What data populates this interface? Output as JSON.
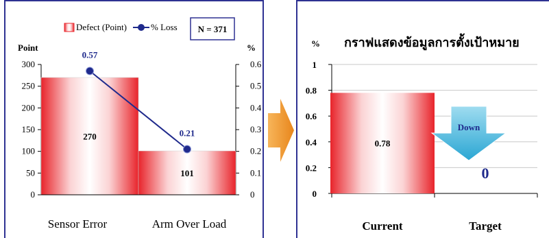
{
  "chart_data": [
    {
      "type": "bar",
      "categories": [
        "Sensor Error",
        "Arm Over Load"
      ],
      "series": [
        {
          "name": "Defect (Point)",
          "values": [
            270,
            101
          ],
          "kind": "bar",
          "axis": "left"
        },
        {
          "name": "% Loss",
          "values": [
            0.57,
            0.21
          ],
          "kind": "line",
          "axis": "right"
        }
      ],
      "ylabel": "Point",
      "y2label": "%",
      "ylim": [
        0,
        300
      ],
      "y2lim": [
        0,
        0.6
      ],
      "yticks": [
        "0",
        "50",
        "100",
        "150",
        "200",
        "250",
        "300"
      ],
      "y2ticks": [
        "0",
        "0.1",
        "0.2",
        "0.3",
        "0.4",
        "0.5",
        "0.6"
      ],
      "bar_labels": [
        "270",
        "101"
      ],
      "line_labels": [
        "0.57",
        "0.21"
      ],
      "annotation": "N = 371",
      "legend_position": "top",
      "colors": {
        "bar": "#e8242b",
        "line": "#1f2a8c"
      }
    },
    {
      "type": "bar",
      "title": "กราฟแสดงข้อมูลการตั้งเป้าหมาย",
      "categories": [
        "Current",
        "Target"
      ],
      "values": [
        0.78,
        0
      ],
      "ylabel": "%",
      "ylim": [
        0,
        1
      ],
      "yticks": [
        "0",
        "0.2",
        "0.4",
        "0.6",
        "0.8",
        "1"
      ],
      "bar_labels": [
        "0.78",
        "0"
      ],
      "callout": "Down",
      "grid": true,
      "colors": {
        "bar": "#e8242b",
        "arrow": "#35b4dc",
        "target_label": "#1f2a8c"
      }
    }
  ],
  "arrow_color": "#f39c2c"
}
